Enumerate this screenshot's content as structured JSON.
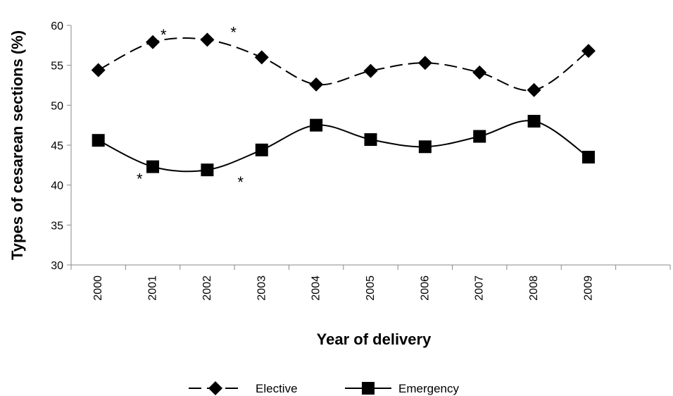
{
  "chart_data": {
    "type": "line",
    "title": "",
    "xlabel": "Year of delivery",
    "ylabel": "Types of cesarean sections (%)",
    "ylim": [
      30,
      60
    ],
    "yticks": [
      30,
      35,
      40,
      45,
      50,
      55,
      60
    ],
    "categories": [
      "2000",
      "2001",
      "2002",
      "2003",
      "2004",
      "2005",
      "2006",
      "2007",
      "2008",
      "2009"
    ],
    "series": [
      {
        "name": "Elective",
        "marker": "diamond",
        "line_style": "dashed",
        "values": [
          54.4,
          57.9,
          58.2,
          56.0,
          52.6,
          54.3,
          55.3,
          54.1,
          51.9,
          56.8
        ]
      },
      {
        "name": "Emergency",
        "marker": "square",
        "line_style": "solid",
        "values": [
          45.6,
          42.3,
          41.9,
          44.4,
          47.5,
          45.7,
          44.8,
          46.1,
          48.0,
          43.5
        ]
      }
    ],
    "annotations": [
      {
        "text": "*",
        "series": "Elective",
        "category": "2001"
      },
      {
        "text": "*",
        "series": "Elective",
        "category": "2002"
      },
      {
        "text": "*",
        "series": "Emergency",
        "category": "2001"
      },
      {
        "text": "*",
        "series": "Emergency",
        "category": "2002"
      }
    ],
    "grid": false,
    "legend": "bottom-center",
    "colors": {
      "line": "#000000",
      "axis": "#888888"
    }
  }
}
